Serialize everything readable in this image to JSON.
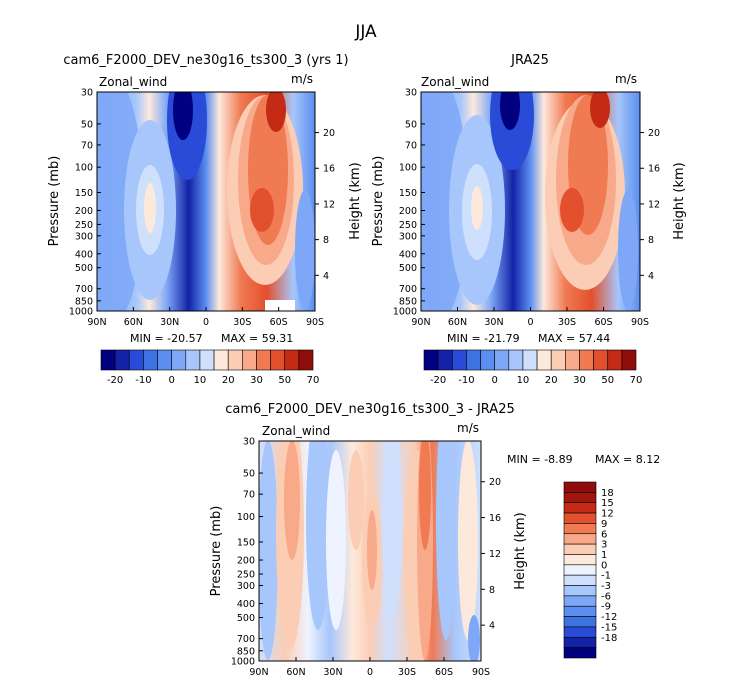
{
  "page": {
    "season": "JJA"
  },
  "colors": {
    "levels_main": [
      "#000080",
      "#1322a6",
      "#2a4bd7",
      "#3d72e3",
      "#5b8ef0",
      "#7ea8f7",
      "#a7c6fb",
      "#cfe0fd",
      "#fde9dc",
      "#fbcdb4",
      "#f7a98a",
      "#f07a52",
      "#e3502d",
      "#c52a14",
      "#8f0d0a"
    ],
    "levels_diff": [
      "#000080",
      "#1322a6",
      "#2a4bd7",
      "#3d72e3",
      "#5b8ef0",
      "#7ea8f7",
      "#a7c6fb",
      "#cfe0fd",
      "#eef3ff",
      "#fde9dc",
      "#fbcdb4",
      "#f7a98a",
      "#f07a52",
      "#e3502d",
      "#c52a14",
      "#a0160c",
      "#8f0d0a"
    ]
  },
  "chart_data": [
    {
      "type": "heatmap",
      "title": "cam6_F2000_DEV_ne30g16_ts300_3 (yrs 1)",
      "left_label": "Zonal_wind",
      "units": "m/s",
      "ylabel": "Pressure (mb)",
      "ylabel_right": "Height (km)",
      "x_ticks": [
        "90N",
        "60N",
        "30N",
        "0",
        "30S",
        "60S",
        "90S"
      ],
      "y_ticks": [
        "30",
        "50",
        "70",
        "100",
        "150",
        "200",
        "250",
        "300",
        "400",
        "500",
        "700",
        "850",
        "1000"
      ],
      "height_ticks": [
        "20",
        "16",
        "12",
        "8",
        "4"
      ],
      "min_label": "MIN = -20.57",
      "max_label": "MAX =   59.31",
      "min": -20.57,
      "max": 59.31,
      "colorbar_labels": [
        "-20",
        "-10",
        "0",
        "10",
        "20",
        "30",
        "50",
        "70"
      ]
    },
    {
      "type": "heatmap",
      "title": "JRA25",
      "left_label": "Zonal_wind",
      "units": "m/s",
      "ylabel": "Pressure (mb)",
      "ylabel_right": "Height (km)",
      "x_ticks": [
        "90N",
        "60N",
        "30N",
        "0",
        "30S",
        "60S",
        "90S"
      ],
      "y_ticks": [
        "30",
        "50",
        "70",
        "100",
        "150",
        "200",
        "250",
        "300",
        "400",
        "500",
        "700",
        "850",
        "1000"
      ],
      "height_ticks": [
        "20",
        "16",
        "12",
        "8",
        "4"
      ],
      "min_label": "MIN = -21.79",
      "max_label": "MAX =   57.44",
      "min": -21.79,
      "max": 57.44,
      "colorbar_labels": [
        "-20",
        "-10",
        "0",
        "10",
        "20",
        "30",
        "50",
        "70"
      ]
    },
    {
      "type": "heatmap",
      "title": "cam6_F2000_DEV_ne30g16_ts300_3 - JRA25",
      "left_label": "Zonal_wind",
      "units": "m/s",
      "ylabel": "Pressure (mb)",
      "ylabel_right": "Height (km)",
      "x_ticks": [
        "90N",
        "60N",
        "30N",
        "0",
        "30S",
        "60S",
        "90S"
      ],
      "y_ticks": [
        "30",
        "50",
        "70",
        "100",
        "150",
        "200",
        "250",
        "300",
        "400",
        "500",
        "700",
        "850",
        "1000"
      ],
      "height_ticks": [
        "20",
        "16",
        "12",
        "8",
        "4"
      ],
      "min_label": "MIN =   -8.89",
      "max_label": "MAX =    8.12",
      "min": -8.89,
      "max": 8.12,
      "colorbar_labels": [
        "18",
        "15",
        "12",
        "9",
        "6",
        "3",
        "1",
        "0",
        "-1",
        "-3",
        "-6",
        "-9",
        "-12",
        "-15",
        "-18"
      ]
    }
  ]
}
